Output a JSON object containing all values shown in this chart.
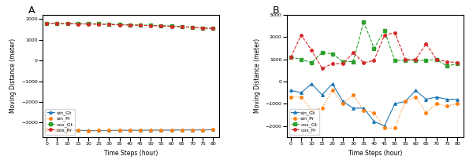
{
  "time_steps": [
    0,
    5,
    10,
    15,
    20,
    25,
    30,
    35,
    40,
    45,
    50,
    55,
    60,
    65,
    70,
    75,
    80
  ],
  "A_sin_Gt": [
    -3350,
    -3350,
    -3370,
    -3380,
    -3390,
    -3390,
    -3390,
    -3380,
    -3380,
    -3380,
    -3370,
    -3370,
    -3370,
    -3360,
    -3360,
    -3360,
    -3350
  ],
  "A_sin_Pr": [
    -3350,
    -3360,
    -3380,
    -3390,
    -3410,
    -3390,
    -3390,
    -3380,
    -3380,
    -3380,
    -3370,
    -3370,
    -3370,
    -3360,
    -3360,
    -3360,
    -3350
  ],
  "A_cos_Gt": [
    1800,
    1790,
    1790,
    1785,
    1780,
    1775,
    1760,
    1745,
    1730,
    1720,
    1700,
    1690,
    1670,
    1650,
    1600,
    1570,
    1550
  ],
  "A_cos_Pr": [
    1800,
    1790,
    1780,
    1770,
    1760,
    1750,
    1740,
    1720,
    1710,
    1700,
    1685,
    1670,
    1650,
    1630,
    1600,
    1570,
    1550
  ],
  "B_sin_Gt": [
    -400,
    -500,
    -100,
    -600,
    -100,
    -900,
    -1200,
    -1200,
    -1800,
    -2000,
    -1000,
    -900,
    -400,
    -800,
    -700,
    -800,
    -800
  ],
  "B_sin_Pr": [
    -700,
    -700,
    -1300,
    -1200,
    -400,
    -1000,
    -600,
    -1300,
    -1400,
    -2100,
    -2100,
    -900,
    -700,
    -1400,
    -1000,
    -1100,
    -1000
  ],
  "B_cos_Gt": [
    1100,
    1000,
    850,
    1300,
    1250,
    900,
    900,
    2700,
    1500,
    2300,
    950,
    950,
    950,
    950,
    1000,
    700,
    800
  ],
  "B_cos_Pr": [
    1100,
    2100,
    1400,
    600,
    800,
    800,
    1300,
    850,
    950,
    2100,
    2200,
    1000,
    1000,
    1700,
    1000,
    900,
    850
  ],
  "colors": {
    "sin_Gt": "#1f77b4",
    "sin_Pr": "#ff7f0e",
    "cos_Gt": "#2ca02c",
    "cos_Pr": "#d62728"
  },
  "ylabel": "Moving Distance (meter)",
  "xlabel": "Time Steps (hour)",
  "A_ylim": [
    -3700,
    2200
  ],
  "B_ylim": [
    -2500,
    3000
  ]
}
